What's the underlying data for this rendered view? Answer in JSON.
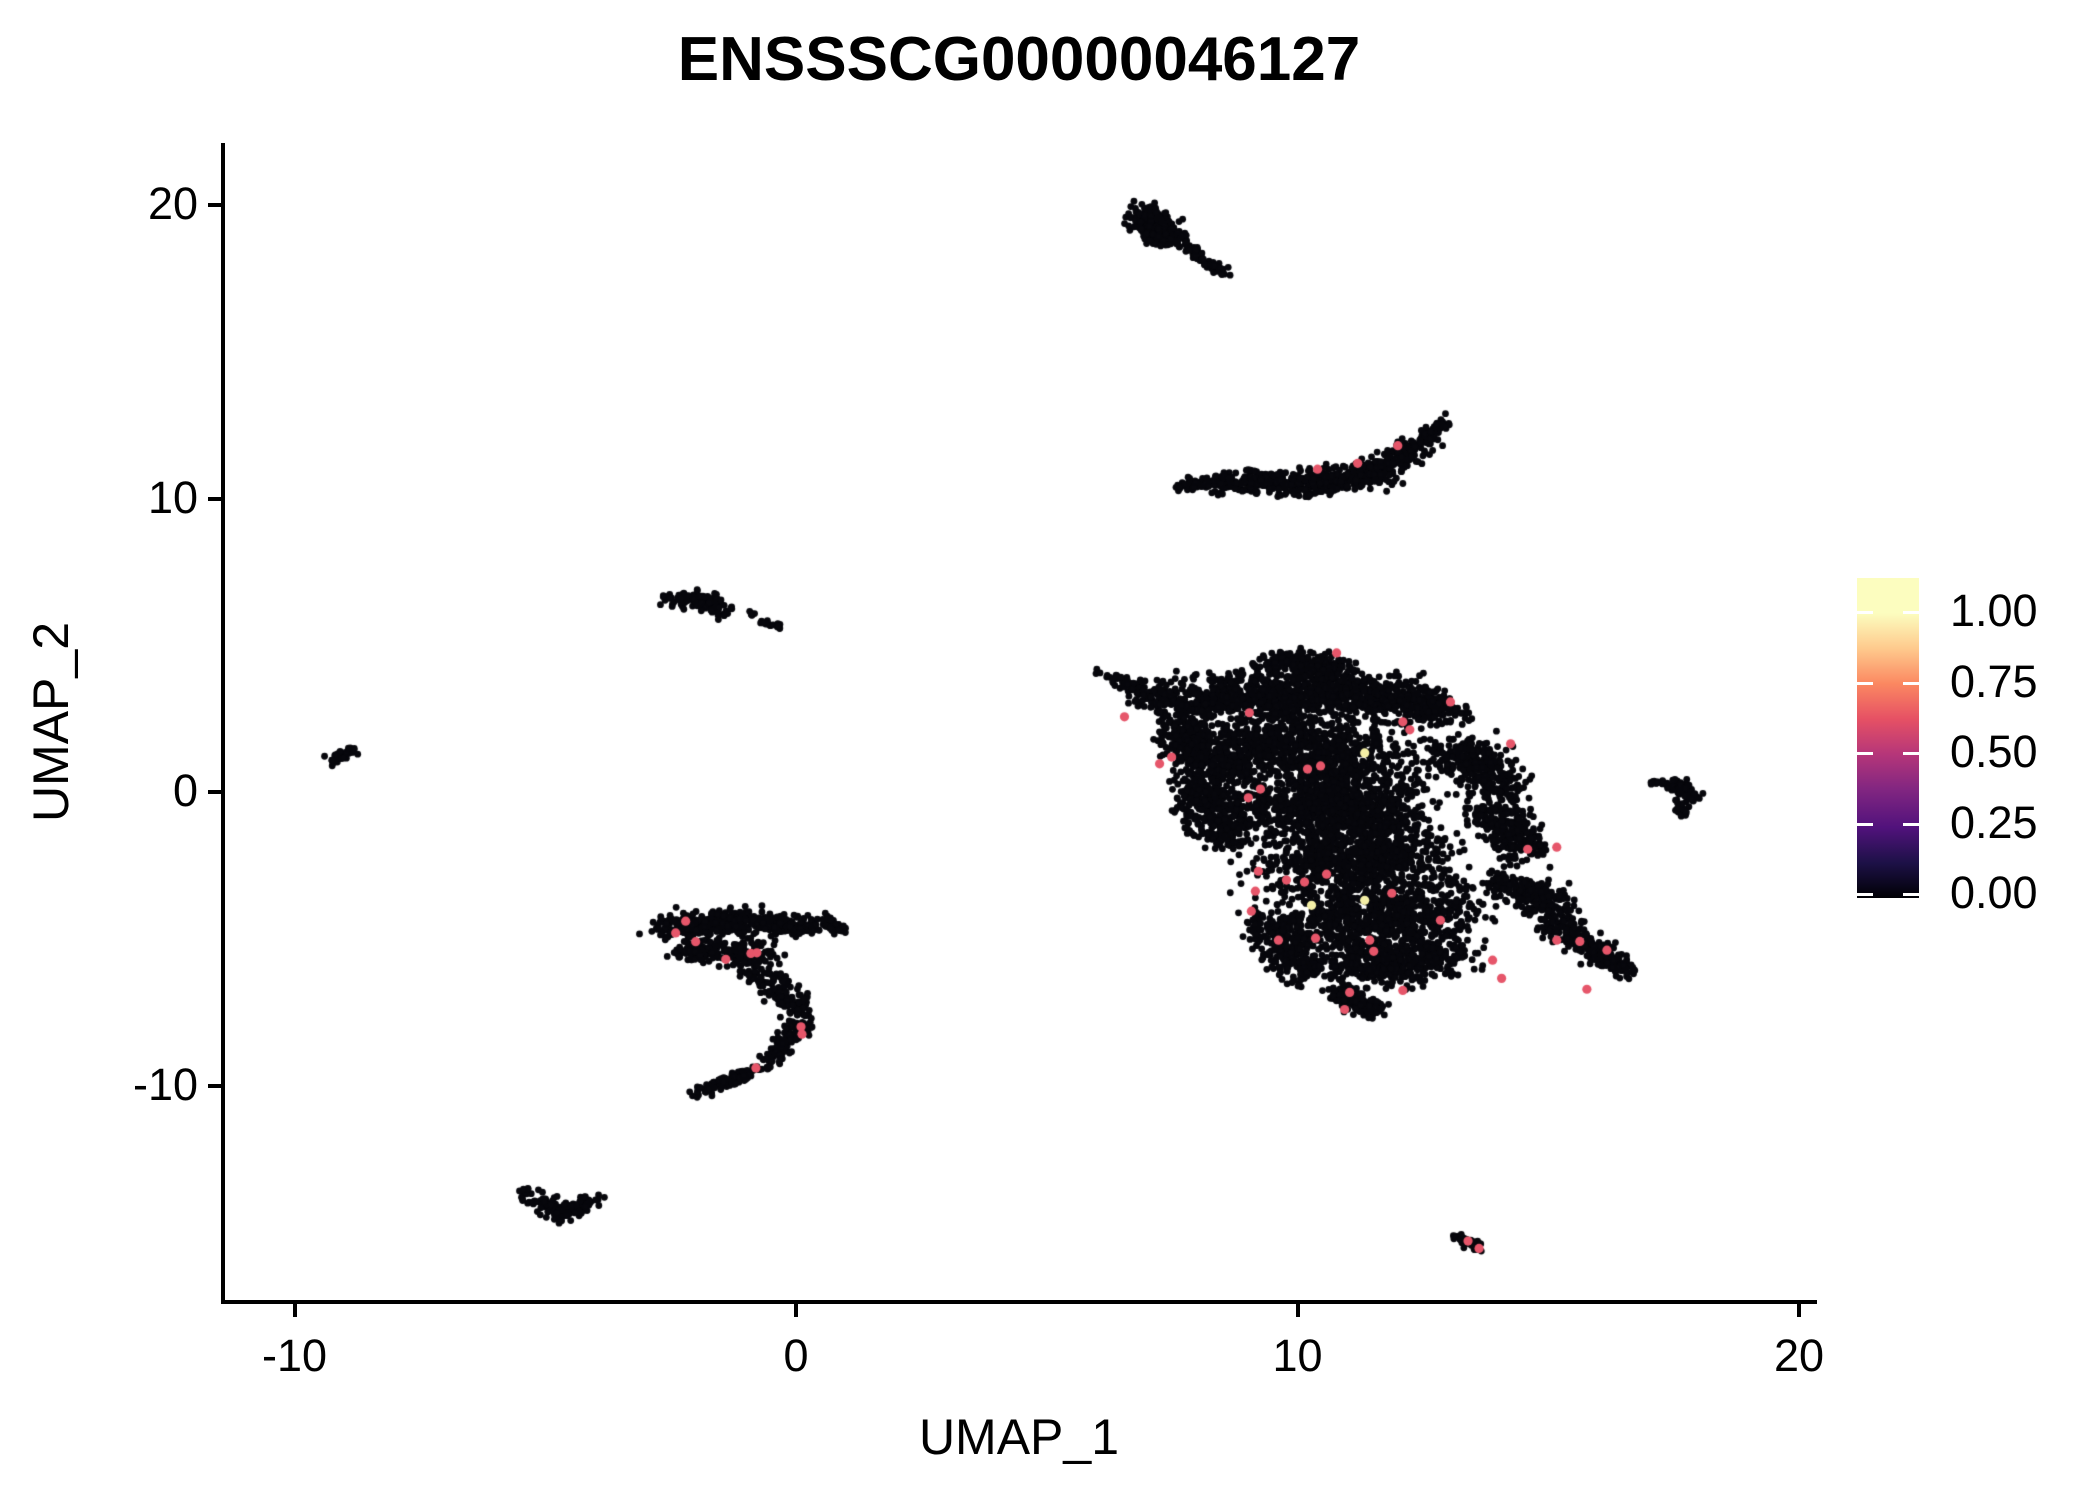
{
  "title": "ENSSSCG00000046127",
  "axes": {
    "x": {
      "label": "UMAP_1",
      "ticks": [
        -10,
        0,
        10,
        20
      ]
    },
    "y": {
      "label": "UMAP_2",
      "ticks": [
        -10,
        0,
        10,
        20
      ]
    }
  },
  "legend": {
    "tick_labels": [
      "1.00",
      "0.75",
      "0.50",
      "0.25",
      "0.00"
    ],
    "colormap": "magma",
    "gradient_stops": [
      [
        "#000004",
        0
      ],
      [
        "#1d1147",
        11
      ],
      [
        "#51127c",
        22
      ],
      [
        "#822681",
        34
      ],
      [
        "#b63679",
        45
      ],
      [
        "#e65164",
        56
      ],
      [
        "#fb8861",
        67
      ],
      [
        "#feca8d",
        78
      ],
      [
        "#fcfdbf",
        89
      ],
      [
        "#fcfdbf",
        100
      ]
    ]
  },
  "colors": {
    "point": "#07070c",
    "highlight": "#e6566a",
    "high_expression": "#f4efa6",
    "axis": "#000000"
  },
  "chart_data": {
    "type": "scatter",
    "title": "ENSSSCG00000046127",
    "xlabel": "UMAP_1",
    "ylabel": "UMAP_2",
    "xlim": [
      -11.4,
      20.3
    ],
    "ylim": [
      -17.4,
      22.1
    ],
    "xticks": [
      -10,
      0,
      10,
      20
    ],
    "yticks": [
      -10,
      0,
      10,
      20
    ],
    "grid": false,
    "legend_position": "right",
    "colorbar": {
      "range": [
        0,
        1
      ],
      "ticks": [
        1.0,
        0.75,
        0.5,
        0.25,
        0.0
      ]
    },
    "clusters": [
      {
        "name": "top-small",
        "segments": [
          [
            6.85,
            19.7,
            7.5,
            19.05,
            0.4,
            170
          ],
          [
            7.5,
            19.0,
            8.5,
            17.65,
            0.16,
            70
          ],
          [
            6.95,
            19.15,
            7.45,
            18.75,
            0.28,
            60
          ]
        ]
      },
      {
        "name": "crescent",
        "segments": [
          [
            7.7,
            10.45,
            8.6,
            10.6,
            0.2,
            70
          ],
          [
            8.6,
            10.55,
            10.2,
            10.5,
            0.38,
            230
          ],
          [
            10.2,
            10.5,
            11.6,
            10.85,
            0.45,
            230
          ],
          [
            11.6,
            10.85,
            12.45,
            11.9,
            0.4,
            130
          ],
          [
            12.45,
            11.9,
            12.95,
            12.65,
            0.22,
            50
          ]
        ]
      },
      {
        "name": "left-mid-small",
        "segments": [
          [
            -2.55,
            6.6,
            -1.75,
            6.55,
            0.27,
            70
          ],
          [
            -1.75,
            6.5,
            -1.45,
            6.15,
            0.25,
            45
          ],
          [
            -0.9,
            6.1,
            -0.85,
            6.1,
            0.07,
            6
          ],
          [
            -0.7,
            5.8,
            -0.3,
            5.62,
            0.11,
            18
          ]
        ]
      },
      {
        "name": "far-left-tiny",
        "segments": [
          [
            -9.25,
            1.05,
            -8.85,
            1.45,
            0.18,
            40
          ]
        ]
      },
      {
        "name": "main-large",
        "segments": [
          [
            6.15,
            4.05,
            6.9,
            3.45,
            0.2,
            50
          ],
          [
            6.9,
            3.45,
            7.9,
            2.85,
            0.45,
            140
          ],
          [
            7.9,
            3.1,
            10.4,
            3.5,
            0.75,
            520
          ],
          [
            9.3,
            4.35,
            10.9,
            4.3,
            0.45,
            200
          ],
          [
            10.4,
            3.4,
            12.2,
            3.05,
            0.75,
            420
          ],
          [
            12.2,
            3.3,
            13.05,
            2.6,
            0.5,
            200
          ],
          [
            7.65,
            2.2,
            8.6,
            0.4,
            0.75,
            430
          ],
          [
            8.0,
            0.2,
            8.65,
            -1.6,
            0.65,
            330
          ],
          [
            9.0,
            1.8,
            11.5,
            1.05,
            1.1,
            850
          ],
          [
            9.5,
            -0.5,
            12.0,
            -0.5,
            1.2,
            880
          ],
          [
            9.8,
            -2.5,
            12.5,
            -2.2,
            1.1,
            800
          ],
          [
            10.2,
            -4.5,
            13.0,
            -4.05,
            1.0,
            700
          ],
          [
            11.0,
            -6.0,
            13.0,
            -5.5,
            0.75,
            480
          ],
          [
            13.0,
            1.5,
            14.2,
            0.2,
            0.65,
            330
          ],
          [
            13.8,
            -0.5,
            14.6,
            -2.0,
            0.55,
            280
          ],
          [
            14.0,
            -3.0,
            15.2,
            -4.0,
            0.5,
            240
          ],
          [
            15.0,
            -4.35,
            16.4,
            -5.9,
            0.4,
            200
          ],
          [
            16.0,
            -5.6,
            16.6,
            -6.15,
            0.25,
            70
          ],
          [
            10.8,
            -6.8,
            11.6,
            -7.45,
            0.35,
            140
          ],
          [
            9.4,
            -4.4,
            10.2,
            -6.2,
            0.55,
            280
          ]
        ]
      },
      {
        "name": "right-small",
        "segments": [
          [
            17.1,
            0.35,
            17.35,
            0.28,
            0.1,
            14
          ],
          [
            17.5,
            0.3,
            17.9,
            -0.2,
            0.24,
            60
          ],
          [
            17.6,
            -0.35,
            17.7,
            -0.75,
            0.13,
            22
          ]
        ]
      },
      {
        "name": "mid-left-tailed",
        "segments": [
          [
            -2.6,
            -4.6,
            -1.2,
            -4.35,
            0.45,
            240
          ],
          [
            -1.2,
            -4.35,
            0.3,
            -4.6,
            0.4,
            190
          ],
          [
            0.55,
            -4.3,
            0.9,
            -4.75,
            0.18,
            35
          ],
          [
            -2.3,
            -5.4,
            -0.6,
            -5.5,
            0.4,
            210
          ],
          [
            -0.9,
            -6.0,
            0.2,
            -7.6,
            0.4,
            140
          ],
          [
            0.15,
            -7.8,
            -0.6,
            -9.3,
            0.26,
            110
          ],
          [
            -0.6,
            -9.3,
            -2.0,
            -10.3,
            0.22,
            100
          ]
        ]
      },
      {
        "name": "bottom-left-small",
        "segments": [
          [
            -5.4,
            -13.7,
            -4.6,
            -14.4,
            0.26,
            75
          ],
          [
            -4.6,
            -14.4,
            -4.05,
            -13.85,
            0.24,
            65
          ]
        ]
      },
      {
        "name": "bottom-small",
        "segments": [
          [
            13.2,
            -15.1,
            13.7,
            -15.6,
            0.15,
            40
          ]
        ]
      }
    ],
    "highlight_points": [
      [
        10.4,
        11.0
      ],
      [
        11.2,
        11.2
      ],
      [
        12.0,
        11.8
      ],
      [
        6.55,
        2.56
      ],
      [
        7.25,
        0.96
      ],
      [
        7.49,
        1.19
      ],
      [
        9.04,
        2.7
      ],
      [
        9.02,
        -0.2
      ],
      [
        9.26,
        0.1
      ],
      [
        10.2,
        0.78
      ],
      [
        10.46,
        0.89
      ],
      [
        9.22,
        -2.7
      ],
      [
        9.78,
        -3.0
      ],
      [
        10.14,
        -3.07
      ],
      [
        10.58,
        -2.8
      ],
      [
        9.16,
        -3.38
      ],
      [
        9.08,
        -4.06
      ],
      [
        9.62,
        -5.05
      ],
      [
        10.36,
        -4.98
      ],
      [
        11.44,
        -5.05
      ],
      [
        11.52,
        -5.43
      ],
      [
        11.04,
        -6.83
      ],
      [
        10.94,
        -7.41
      ],
      [
        12.1,
        -6.76
      ],
      [
        11.88,
        -3.45
      ],
      [
        12.85,
        -4.37
      ],
      [
        13.89,
        -5.73
      ],
      [
        14.07,
        -6.35
      ],
      [
        12.1,
        2.39
      ],
      [
        12.24,
        2.12
      ],
      [
        13.05,
        3.07
      ],
      [
        14.25,
        1.64
      ],
      [
        14.59,
        -1.95
      ],
      [
        15.17,
        -1.88
      ],
      [
        15.17,
        -5.05
      ],
      [
        15.63,
        -5.09
      ],
      [
        16.17,
        -5.39
      ],
      [
        15.77,
        -6.72
      ],
      [
        10.78,
        4.74
      ],
      [
        -2.4,
        -4.8
      ],
      [
        -2.2,
        -4.4
      ],
      [
        -2.0,
        -5.1
      ],
      [
        -1.4,
        -5.7
      ],
      [
        -0.9,
        -5.5
      ],
      [
        -0.78,
        -5.48
      ],
      [
        0.1,
        -8.0
      ],
      [
        0.12,
        -8.25
      ],
      [
        -0.8,
        -9.4
      ],
      [
        13.4,
        -15.3
      ],
      [
        13.62,
        -15.55
      ]
    ],
    "high_expression_points": [
      [
        11.34,
        1.33
      ],
      [
        10.28,
        -3.86
      ],
      [
        11.34,
        -3.69
      ]
    ]
  }
}
